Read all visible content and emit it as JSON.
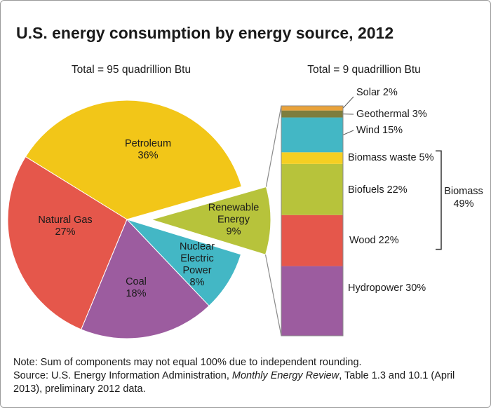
{
  "title": "U.S. energy consumption by energy source, 2012",
  "chart_data": [
    {
      "type": "pie",
      "subtitle": "Total = 95 quadrillion Btu",
      "categories": [
        "Petroleum",
        "Natural Gas",
        "Coal",
        "Nuclear Electric Power",
        "Renewable Energy"
      ],
      "values": [
        36,
        27,
        18,
        8,
        9
      ],
      "value_labels": [
        "36%",
        "27%",
        "18%",
        "8%",
        "9%"
      ],
      "colors": [
        "#f2c618",
        "#e5574b",
        "#9c5c9f",
        "#43b7c5",
        "#b7c33b"
      ]
    },
    {
      "type": "stacked_bar",
      "subtitle": "Total = 9 quadrillion Btu",
      "series": [
        {
          "name": "Hydropower",
          "color": "#9c5c9f",
          "values": [
            30
          ],
          "value_labels": [
            "30%"
          ]
        },
        {
          "name": "Wood",
          "color": "#e5574b",
          "values": [
            22
          ],
          "value_labels": [
            "22%"
          ]
        },
        {
          "name": "Biofuels",
          "color": "#b7c33b",
          "values": [
            22
          ],
          "value_labels": [
            "22%"
          ]
        },
        {
          "name": "Biomass waste",
          "color": "#f5cf22",
          "values": [
            5
          ],
          "value_labels": [
            "5%"
          ]
        },
        {
          "name": "Wind",
          "color": "#43b7c5",
          "values": [
            15
          ],
          "value_labels": [
            "15%"
          ]
        },
        {
          "name": "Geothermal",
          "color": "#7d7d3e",
          "values": [
            3
          ],
          "value_labels": [
            "3%"
          ]
        },
        {
          "name": "Solar",
          "color": "#e9a23a",
          "values": [
            2
          ],
          "value_labels": [
            "2%"
          ]
        }
      ],
      "annotation": {
        "text": "Biomass",
        "value": 49,
        "value_label": "49%"
      }
    }
  ],
  "note": "Note: Sum of components may not equal 100% due to independent rounding.",
  "source": [
    "Source: U.S. Energy Information Administration, ",
    "Monthly Energy Review",
    ", Table 1.3 and 10.1 (April 2013), preliminary 2012 data."
  ]
}
